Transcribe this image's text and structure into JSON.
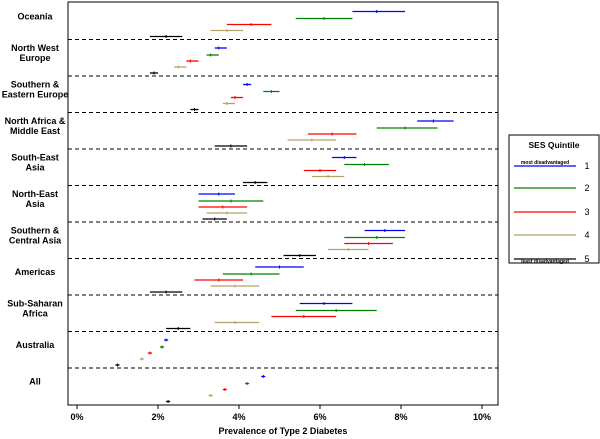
{
  "chart_data": {
    "type": "interval",
    "xlabel": "Prevalence of Type 2 Diabetes",
    "xlim": [
      0,
      10
    ],
    "x_ticks": [
      {
        "value": 0,
        "label": "0%"
      },
      {
        "value": 2,
        "label": "2%"
      },
      {
        "value": 4,
        "label": "4%"
      },
      {
        "value": 6,
        "label": "6%"
      },
      {
        "value": 8,
        "label": "8%"
      },
      {
        "value": 10,
        "label": "10%"
      }
    ],
    "legend": {
      "title": "SES Quintile",
      "placement": "right",
      "entries": [
        {
          "quintile": "1",
          "label": "1",
          "note": "most disadvantaged",
          "color": "#0000ff"
        },
        {
          "quintile": "2",
          "label": "2",
          "note": "",
          "color": "#008000"
        },
        {
          "quintile": "3",
          "label": "3",
          "note": "",
          "color": "#ff0000"
        },
        {
          "quintile": "4",
          "label": "4",
          "note": "",
          "color": "#b5a26a"
        },
        {
          "quintile": "5",
          "label": "5",
          "note": "least disadvantaged",
          "color": "#000000"
        }
      ]
    },
    "groups": [
      {
        "label": [
          "Oceania"
        ],
        "series": [
          {
            "quintile": "1",
            "low": 6.8,
            "mid": 7.4,
            "high": 8.1
          },
          {
            "quintile": "2",
            "low": 5.4,
            "mid": 6.1,
            "high": 6.8
          },
          {
            "quintile": "3",
            "low": 3.7,
            "mid": 4.3,
            "high": 4.8
          },
          {
            "quintile": "4",
            "low": 3.3,
            "mid": 3.7,
            "high": 4.1
          },
          {
            "quintile": "5",
            "low": 1.8,
            "mid": 2.2,
            "high": 2.6
          }
        ]
      },
      {
        "label": [
          "North West",
          "Europe"
        ],
        "series": [
          {
            "quintile": "1",
            "low": 3.4,
            "mid": 3.5,
            "high": 3.7
          },
          {
            "quintile": "2",
            "low": 3.2,
            "mid": 3.3,
            "high": 3.5
          },
          {
            "quintile": "3",
            "low": 2.7,
            "mid": 2.8,
            "high": 3.0
          },
          {
            "quintile": "4",
            "low": 2.4,
            "mid": 2.5,
            "high": 2.7
          },
          {
            "quintile": "5",
            "low": 1.8,
            "mid": 1.9,
            "high": 2.0
          }
        ]
      },
      {
        "label": [
          "Southern &",
          "Eastern Europe"
        ],
        "series": [
          {
            "quintile": "1",
            "low": 4.1,
            "mid": 4.2,
            "high": 4.3
          },
          {
            "quintile": "2",
            "low": 4.6,
            "mid": 4.8,
            "high": 5.0
          },
          {
            "quintile": "3",
            "low": 3.8,
            "mid": 3.9,
            "high": 4.1
          },
          {
            "quintile": "4",
            "low": 3.6,
            "mid": 3.7,
            "high": 3.9
          },
          {
            "quintile": "5",
            "low": 2.8,
            "mid": 2.9,
            "high": 3.0
          }
        ]
      },
      {
        "label": [
          "North Africa &",
          "Middle East"
        ],
        "series": [
          {
            "quintile": "1",
            "low": 8.4,
            "mid": 8.8,
            "high": 9.3
          },
          {
            "quintile": "2",
            "low": 7.4,
            "mid": 8.1,
            "high": 8.9
          },
          {
            "quintile": "3",
            "low": 5.7,
            "mid": 6.3,
            "high": 6.9
          },
          {
            "quintile": "4",
            "low": 5.2,
            "mid": 5.8,
            "high": 6.4
          },
          {
            "quintile": "5",
            "low": 3.4,
            "mid": 3.8,
            "high": 4.2
          }
        ]
      },
      {
        "label": [
          "South-East",
          "Asia"
        ],
        "series": [
          {
            "quintile": "1",
            "low": 6.3,
            "mid": 6.6,
            "high": 6.9
          },
          {
            "quintile": "2",
            "low": 6.6,
            "mid": 7.1,
            "high": 7.7
          },
          {
            "quintile": "3",
            "low": 5.6,
            "mid": 6.0,
            "high": 6.4
          },
          {
            "quintile": "4",
            "low": 5.8,
            "mid": 6.2,
            "high": 6.6
          },
          {
            "quintile": "5",
            "low": 4.1,
            "mid": 4.4,
            "high": 4.7
          }
        ]
      },
      {
        "label": [
          "North-East",
          "Asia"
        ],
        "series": [
          {
            "quintile": "1",
            "low": 3.0,
            "mid": 3.5,
            "high": 3.9
          },
          {
            "quintile": "2",
            "low": 3.0,
            "mid": 3.8,
            "high": 4.6
          },
          {
            "quintile": "3",
            "low": 3.0,
            "mid": 3.6,
            "high": 4.2
          },
          {
            "quintile": "4",
            "low": 3.2,
            "mid": 3.7,
            "high": 4.2
          },
          {
            "quintile": "5",
            "low": 3.1,
            "mid": 3.4,
            "high": 3.7
          }
        ]
      },
      {
        "label": [
          "Southern &",
          "Central Asia"
        ],
        "series": [
          {
            "quintile": "1",
            "low": 7.1,
            "mid": 7.6,
            "high": 8.1
          },
          {
            "quintile": "2",
            "low": 6.6,
            "mid": 7.4,
            "high": 8.1
          },
          {
            "quintile": "3",
            "low": 6.6,
            "mid": 7.2,
            "high": 7.8
          },
          {
            "quintile": "4",
            "low": 6.2,
            "mid": 6.7,
            "high": 7.2
          },
          {
            "quintile": "5",
            "low": 5.1,
            "mid": 5.5,
            "high": 5.9
          }
        ]
      },
      {
        "label": [
          "Americas"
        ],
        "series": [
          {
            "quintile": "1",
            "low": 4.4,
            "mid": 5.0,
            "high": 5.6
          },
          {
            "quintile": "2",
            "low": 3.6,
            "mid": 4.3,
            "high": 5.0
          },
          {
            "quintile": "3",
            "low": 2.9,
            "mid": 3.5,
            "high": 4.1
          },
          {
            "quintile": "4",
            "low": 3.3,
            "mid": 3.9,
            "high": 4.5
          },
          {
            "quintile": "5",
            "low": 1.8,
            "mid": 2.2,
            "high": 2.6
          }
        ]
      },
      {
        "label": [
          "Sub-Saharan",
          "Africa"
        ],
        "series": [
          {
            "quintile": "1",
            "low": 5.5,
            "mid": 6.1,
            "high": 6.8
          },
          {
            "quintile": "2",
            "low": 5.4,
            "mid": 6.4,
            "high": 7.4
          },
          {
            "quintile": "3",
            "low": 4.8,
            "mid": 5.6,
            "high": 6.4
          },
          {
            "quintile": "4",
            "low": 3.4,
            "mid": 3.9,
            "high": 4.5
          },
          {
            "quintile": "5",
            "low": 2.2,
            "mid": 2.5,
            "high": 2.8
          }
        ]
      },
      {
        "label": [
          "Australia"
        ],
        "series": [
          {
            "quintile": "1",
            "low": 2.15,
            "mid": 2.2,
            "high": 2.25
          },
          {
            "quintile": "2",
            "low": 2.05,
            "mid": 2.1,
            "high": 2.15
          },
          {
            "quintile": "3",
            "low": 1.75,
            "mid": 1.8,
            "high": 1.85
          },
          {
            "quintile": "4",
            "low": 1.55,
            "mid": 1.6,
            "high": 1.65
          },
          {
            "quintile": "5",
            "low": 0.95,
            "mid": 1.0,
            "high": 1.05
          }
        ]
      },
      {
        "label": [
          "All"
        ],
        "series": [
          {
            "quintile": "1",
            "low": 4.55,
            "mid": 4.6,
            "high": 4.65
          },
          {
            "quintile": "2",
            "low": 4.15,
            "mid": 4.2,
            "high": 4.25
          },
          {
            "quintile": "3",
            "low": 3.6,
            "mid": 3.65,
            "high": 3.7
          },
          {
            "quintile": "4",
            "low": 3.25,
            "mid": 3.3,
            "high": 3.35
          },
          {
            "quintile": "5",
            "low": 2.2,
            "mid": 2.25,
            "high": 2.3
          }
        ]
      }
    ]
  }
}
